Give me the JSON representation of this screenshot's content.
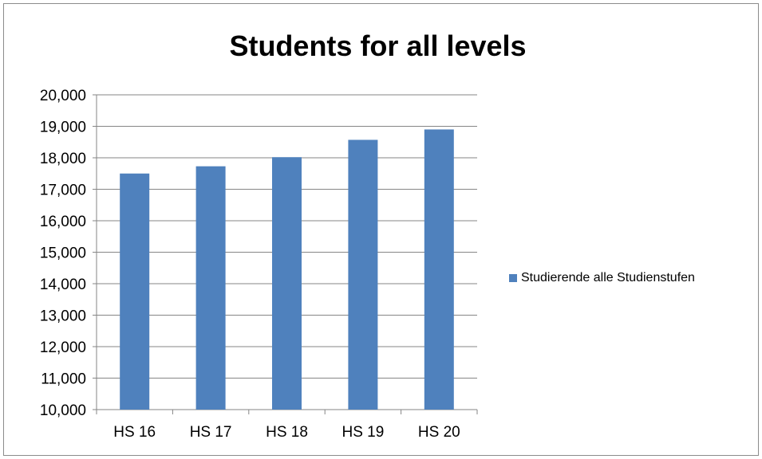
{
  "chart_data": {
    "type": "bar",
    "title": "Students for all levels",
    "xlabel": "",
    "ylabel": "",
    "categories": [
      "HS 16",
      "HS 17",
      "HS 18",
      "HS 19",
      "HS 20"
    ],
    "series": [
      {
        "name": "Studierende alle Studienstufen",
        "color": "#4f81bd",
        "values": [
          17500,
          17730,
          18020,
          18570,
          18900
        ]
      }
    ],
    "ylim": [
      10000,
      20000
    ],
    "yticks": [
      "10,000",
      "11,000",
      "12,000",
      "13,000",
      "14,000",
      "15,000",
      "16,000",
      "17,000",
      "18,000",
      "19,000",
      "20,000"
    ],
    "ytick_values": [
      10000,
      11000,
      12000,
      13000,
      14000,
      15000,
      16000,
      17000,
      18000,
      19000,
      20000
    ],
    "grid": true,
    "legend_position": "right",
    "colors": {
      "grid": "#868686",
      "axis": "#868686",
      "frame": "#8c8c8c"
    }
  }
}
